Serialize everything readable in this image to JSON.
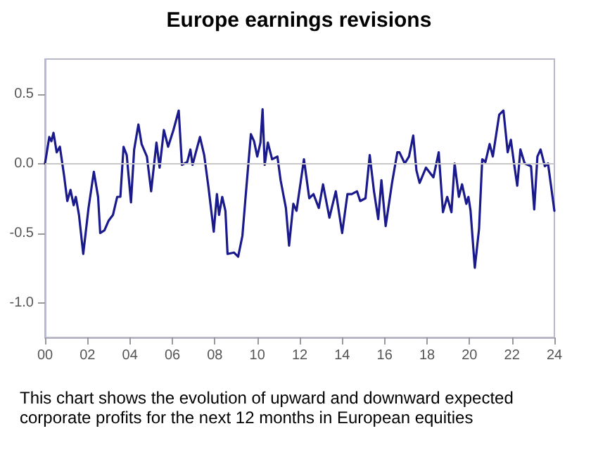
{
  "chart_data": {
    "type": "line",
    "title": "Europe earnings revisions",
    "x": [
      2000.0,
      2000.2,
      2000.3,
      2000.4,
      2000.55,
      2000.7,
      2000.9,
      2001.05,
      2001.2,
      2001.35,
      2001.45,
      2001.6,
      2001.8,
      2002.05,
      2002.3,
      2002.5,
      2002.6,
      2002.8,
      2003.0,
      2003.2,
      2003.4,
      2003.55,
      2003.7,
      2003.85,
      2004.05,
      2004.2,
      2004.4,
      2004.55,
      2004.8,
      2005.0,
      2005.25,
      2005.4,
      2005.6,
      2005.8,
      2006.05,
      2006.3,
      2006.45,
      2006.7,
      2006.85,
      2006.95,
      2007.3,
      2007.5,
      2007.7,
      2007.95,
      2008.1,
      2008.2,
      2008.35,
      2008.5,
      2008.6,
      2008.9,
      2009.1,
      2009.3,
      2009.45,
      2009.7,
      2009.85,
      2010.0,
      2010.15,
      2010.25,
      2010.35,
      2010.5,
      2010.7,
      2010.95,
      2011.1,
      2011.35,
      2011.5,
      2011.7,
      2011.85,
      2012.2,
      2012.45,
      2012.65,
      2012.9,
      2013.1,
      2013.4,
      2013.7,
      2014.0,
      2014.25,
      2014.45,
      2014.7,
      2014.85,
      2015.1,
      2015.3,
      2015.5,
      2015.7,
      2015.85,
      2016.05,
      2016.35,
      2016.6,
      2016.7,
      2016.95,
      2017.15,
      2017.35,
      2017.5,
      2017.65,
      2017.95,
      2018.3,
      2018.55,
      2018.75,
      2018.95,
      2019.15,
      2019.3,
      2019.5,
      2019.65,
      2019.85,
      2019.95,
      2020.05,
      2020.25,
      2020.45,
      2020.6,
      2020.75,
      2020.95,
      2021.1,
      2021.4,
      2021.6,
      2021.8,
      2021.95,
      2022.1,
      2022.25,
      2022.4,
      2022.6,
      2022.9,
      2023.05,
      2023.2,
      2023.35,
      2023.55,
      2023.7,
      2023.85,
      2024.0
    ],
    "series": [
      {
        "color": "#1a1a8c",
        "values": [
          0,
          0.19,
          0.16,
          0.22,
          0.08,
          0.12,
          -0.09,
          -0.27,
          -0.19,
          -0.3,
          -0.24,
          -0.37,
          -0.65,
          -0.32,
          -0.06,
          -0.24,
          -0.5,
          -0.48,
          -0.41,
          -0.37,
          -0.24,
          -0.24,
          0.12,
          0.06,
          -0.28,
          0.1,
          0.28,
          0.14,
          0.05,
          -0.2,
          0.15,
          -0.03,
          0.24,
          0.12,
          0.24,
          0.38,
          -0.01,
          0.01,
          0.1,
          -0.01,
          0.19,
          0.06,
          -0.17,
          -0.49,
          -0.22,
          -0.37,
          -0.24,
          -0.34,
          -0.65,
          -0.64,
          -0.67,
          -0.52,
          -0.24,
          0.21,
          0.16,
          0.05,
          0.15,
          0.39,
          -0.01,
          0.15,
          0.03,
          0.05,
          -0.12,
          -0.32,
          -0.59,
          -0.29,
          -0.34,
          0.03,
          -0.25,
          -0.22,
          -0.32,
          -0.15,
          -0.39,
          -0.2,
          -0.5,
          -0.22,
          -0.22,
          -0.2,
          -0.27,
          -0.25,
          0.06,
          -0.2,
          -0.4,
          -0.12,
          -0.45,
          -0.14,
          0.08,
          0.08,
          0,
          0.05,
          0.2,
          -0.05,
          -0.14,
          -0.03,
          -0.1,
          0.08,
          -0.35,
          -0.24,
          -0.35,
          0,
          -0.24,
          -0.15,
          -0.29,
          -0.24,
          -0.34,
          -0.75,
          -0.47,
          0.03,
          0.01,
          0.14,
          0.05,
          0.35,
          0.38,
          0.08,
          0.17,
          0,
          -0.16,
          0.1,
          0,
          -0.02,
          -0.33,
          0.05,
          0.1,
          -0.02,
          0,
          -0.17,
          -0.34
        ]
      }
    ],
    "xlim": [
      2000,
      2024
    ],
    "xticks": [
      {
        "value": 2000,
        "label": "00"
      },
      {
        "value": 2002,
        "label": "02"
      },
      {
        "value": 2004,
        "label": "04"
      },
      {
        "value": 2006,
        "label": "06"
      },
      {
        "value": 2008,
        "label": "08"
      },
      {
        "value": 2010,
        "label": "10"
      },
      {
        "value": 2012,
        "label": "12"
      },
      {
        "value": 2014,
        "label": "14"
      },
      {
        "value": 2016,
        "label": "16"
      },
      {
        "value": 2018,
        "label": "18"
      },
      {
        "value": 2020,
        "label": "20"
      },
      {
        "value": 2022,
        "label": "22"
      },
      {
        "value": 2024,
        "label": "24"
      }
    ],
    "ylim": [
      -1.25,
      0.75
    ],
    "yticks": [
      {
        "value": -1,
        "label": "-1.0"
      },
      {
        "value": -0.5,
        "label": "-0.5"
      },
      {
        "value": 0,
        "label": "0.0"
      },
      {
        "value": 0.5,
        "label": "0.5"
      }
    ],
    "ref_lines": [
      {
        "axis": "y",
        "value": 0,
        "color": "#c8c8c8"
      }
    ],
    "marker": "none",
    "line_style": "solid",
    "annotations": [
      "This chart shows the evolution of upward and downward expected corporate profits for the next 12 months in European equities"
    ]
  }
}
